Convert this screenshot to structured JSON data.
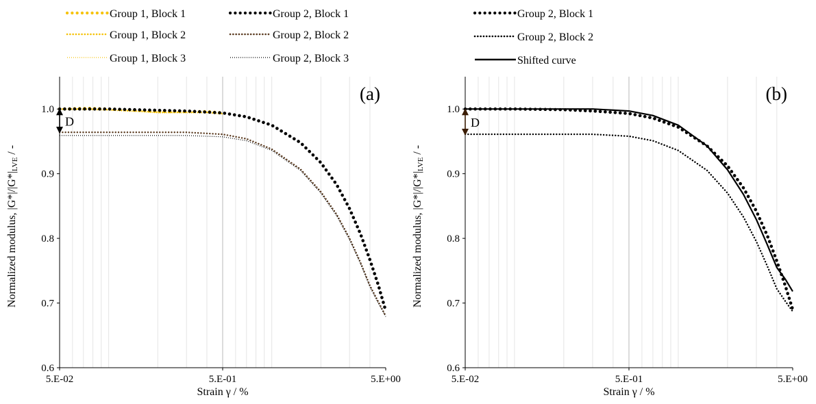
{
  "chart_data": [
    {
      "type": "line",
      "panel_label": "(a)",
      "xlabel": "Strain γ / %",
      "ylabel": "Normalized modulus, |G*|/|G*|",
      "ylabel_sub": "LVE",
      "ylabel_suffix": " / -",
      "x_scale": "log",
      "xlim": [
        0.05,
        5
      ],
      "ylim": [
        0.6,
        1.05
      ],
      "x_ticks": [
        0.05,
        0.5,
        5
      ],
      "x_tick_labels": [
        "5.E-02",
        "5.E-01",
        "5.E+00"
      ],
      "y_ticks": [
        0.6,
        0.7,
        0.8,
        0.9,
        1.0
      ],
      "y_tick_labels": [
        "0.6",
        "0.7",
        "0.8",
        "0.9",
        "1.0"
      ],
      "grid": true,
      "legend_position": "top",
      "annotation": {
        "text": "D",
        "x": 0.05,
        "from_y": 1.0,
        "to_y": 0.963
      },
      "series": [
        {
          "name": "Group 1, Block 1",
          "color": "#F5C20A",
          "style": "dots-large",
          "x": [
            0.05,
            0.075,
            0.1,
            0.15,
            0.2,
            0.3,
            0.4,
            0.5
          ],
          "y": [
            1.0,
            1.001,
            1.0,
            0.998,
            0.996,
            0.996,
            0.996,
            0.994
          ]
        },
        {
          "name": "Group 1, Block 2",
          "color": "#F5C20A",
          "style": "dots-small",
          "x": [
            0.05,
            0.075,
            0.1,
            0.15,
            0.2,
            0.3,
            0.4,
            0.5
          ],
          "y": [
            1.0,
            1.0,
            0.999,
            0.997,
            0.995,
            0.995,
            0.995,
            0.993
          ]
        },
        {
          "name": "Group 1, Block 3",
          "color": "#F5C20A",
          "style": "dots-tiny",
          "x": [
            0.05,
            0.075,
            0.1,
            0.15,
            0.2,
            0.3,
            0.4,
            0.5
          ],
          "y": [
            0.999,
            0.999,
            0.998,
            0.996,
            0.994,
            0.994,
            0.994,
            0.992
          ]
        },
        {
          "name": "Group 2, Block 1",
          "color": "#000000",
          "style": "dots-large",
          "x": [
            0.05,
            0.1,
            0.2,
            0.3,
            0.5,
            0.7,
            1.0,
            1.5,
            2.0,
            2.5,
            3.0,
            3.5,
            4.0,
            4.5,
            5.0
          ],
          "y": [
            1.0,
            1.0,
            0.998,
            0.997,
            0.994,
            0.988,
            0.975,
            0.948,
            0.917,
            0.883,
            0.846,
            0.807,
            0.767,
            0.728,
            0.688
          ]
        },
        {
          "name": "Group 2, Block 2",
          "color": "#5A3A1F",
          "style": "dots-small",
          "x": [
            0.05,
            0.1,
            0.2,
            0.3,
            0.5,
            0.7,
            1.0,
            1.5,
            2.0,
            2.5,
            3.0,
            3.5,
            4.0,
            4.5,
            5.0
          ],
          "y": [
            0.964,
            0.964,
            0.964,
            0.964,
            0.961,
            0.954,
            0.938,
            0.907,
            0.872,
            0.837,
            0.8,
            0.763,
            0.727,
            0.702,
            0.68
          ]
        },
        {
          "name": "Group 2, Block 3",
          "color": "#000000",
          "style": "dots-tiny",
          "x": [
            0.05,
            0.1,
            0.2,
            0.3,
            0.5,
            0.7,
            1.0,
            1.5,
            2.0,
            2.5,
            3.0,
            3.5,
            4.0,
            4.5,
            5.0
          ],
          "y": [
            0.959,
            0.959,
            0.959,
            0.959,
            0.957,
            0.951,
            0.936,
            0.905,
            0.87,
            0.835,
            0.798,
            0.761,
            0.725,
            0.7,
            0.679
          ]
        }
      ]
    },
    {
      "type": "line",
      "panel_label": "(b)",
      "xlabel": "Strain γ / %",
      "ylabel": "Normalized modulus, |G*|/|G*|",
      "ylabel_sub": "LVE",
      "ylabel_suffix": " / -",
      "x_scale": "log",
      "xlim": [
        0.05,
        5
      ],
      "ylim": [
        0.6,
        1.05
      ],
      "x_ticks": [
        0.05,
        0.5,
        5
      ],
      "x_tick_labels": [
        "5.E-02",
        "5.E-01",
        "5.E+00"
      ],
      "y_ticks": [
        0.6,
        0.7,
        0.8,
        0.9,
        1.0
      ],
      "y_tick_labels": [
        "0.6",
        "0.7",
        "0.8",
        "0.9",
        "1.0"
      ],
      "grid": true,
      "legend_position": "top",
      "annotation": {
        "text": "D",
        "x": 0.05,
        "from_y": 1.0,
        "to_y": 0.96
      },
      "series": [
        {
          "name": "Group 2, Block 1",
          "color": "#000000",
          "style": "dots-large",
          "x": [
            0.05,
            0.1,
            0.2,
            0.3,
            0.5,
            0.7,
            1.0,
            1.5,
            2.0,
            2.5,
            3.0,
            3.5,
            4.0,
            4.5,
            5.0
          ],
          "y": [
            1.0,
            1.0,
            0.999,
            0.997,
            0.993,
            0.986,
            0.972,
            0.943,
            0.912,
            0.878,
            0.842,
            0.804,
            0.765,
            0.727,
            0.69
          ]
        },
        {
          "name": "Group 2, Block 2",
          "color": "#000000",
          "style": "dots-small",
          "x": [
            0.05,
            0.1,
            0.2,
            0.3,
            0.5,
            0.7,
            1.0,
            1.5,
            2.0,
            2.5,
            3.0,
            3.5,
            4.0,
            4.5,
            5.0
          ],
          "y": [
            0.961,
            0.961,
            0.961,
            0.961,
            0.958,
            0.951,
            0.936,
            0.905,
            0.87,
            0.833,
            0.795,
            0.757,
            0.722,
            0.703,
            0.687
          ]
        },
        {
          "name": "Shifted curve",
          "color": "#000000",
          "style": "solid",
          "x": [
            0.05,
            0.1,
            0.2,
            0.3,
            0.5,
            0.7,
            1.0,
            1.5,
            2.0,
            2.5,
            3.0,
            3.5,
            4.0,
            4.5,
            5.0
          ],
          "y": [
            1.0,
            1.0,
            1.0,
            1.0,
            0.997,
            0.99,
            0.975,
            0.943,
            0.906,
            0.868,
            0.829,
            0.79,
            0.755,
            0.737,
            0.718
          ]
        }
      ]
    }
  ]
}
